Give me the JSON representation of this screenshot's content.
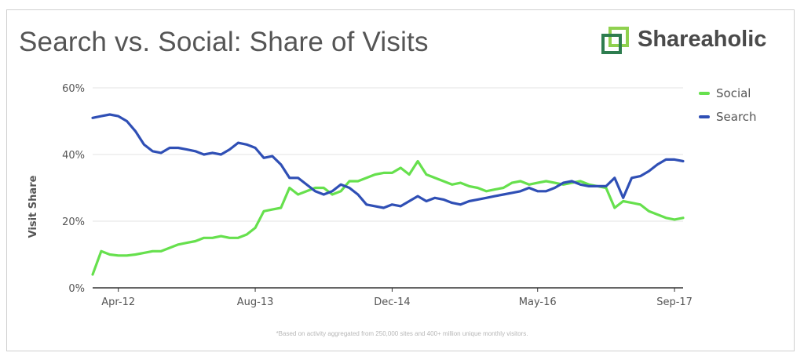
{
  "title": "Search vs. Social: Share of Visits",
  "brand": {
    "name": "Shareaholic",
    "icon": "shareaholic-logo-icon"
  },
  "footnote": "*Based on activity aggregated from 250,000 sites and 400+ million unique monthly visitors.",
  "colors": {
    "social": "#66e04d",
    "search": "#2f4fb5",
    "grid": "#e3e3e3",
    "axis": "#333333",
    "logo_dark": "#2e7d4f",
    "logo_light": "#8fd14f"
  },
  "chart_data": {
    "type": "line",
    "title": "Search vs. Social: Share of Visits",
    "xlabel": "",
    "ylabel": "Visit Share",
    "x_ticks": [
      "Apr-12",
      "Aug-13",
      "Dec-14",
      "May-16",
      "Sep-17"
    ],
    "y_ticks": [
      "0%",
      "20%",
      "40%",
      "60%"
    ],
    "ylim": [
      0,
      60
    ],
    "grid": true,
    "legend_position": "right",
    "x": [
      "Jan-12",
      "Feb-12",
      "Mar-12",
      "Apr-12",
      "May-12",
      "Jun-12",
      "Jul-12",
      "Aug-12",
      "Sep-12",
      "Oct-12",
      "Nov-12",
      "Dec-12",
      "Jan-13",
      "Feb-13",
      "Mar-13",
      "Apr-13",
      "May-13",
      "Jun-13",
      "Jul-13",
      "Aug-13",
      "Sep-13",
      "Oct-13",
      "Nov-13",
      "Dec-13",
      "Jan-14",
      "Feb-14",
      "Mar-14",
      "Apr-14",
      "May-14",
      "Jun-14",
      "Jul-14",
      "Aug-14",
      "Sep-14",
      "Oct-14",
      "Nov-14",
      "Dec-14",
      "Jan-15",
      "Feb-15",
      "Mar-15",
      "Apr-15",
      "May-15",
      "Jun-15",
      "Jul-15",
      "Aug-15",
      "Sep-15",
      "Oct-15",
      "Nov-15",
      "Dec-15",
      "Jan-16",
      "Feb-16",
      "Mar-16",
      "Apr-16",
      "May-16",
      "Jun-16",
      "Jul-16",
      "Aug-16",
      "Sep-16",
      "Oct-16",
      "Nov-16",
      "Dec-16",
      "Jan-17",
      "Feb-17",
      "Mar-17",
      "Apr-17",
      "May-17",
      "Jun-17",
      "Jul-17",
      "Aug-17",
      "Sep-17",
      "Oct-17"
    ],
    "series": [
      {
        "name": "Social",
        "values": [
          4,
          11,
          10,
          9.7,
          9.7,
          10,
          10.5,
          11,
          11,
          12,
          13,
          13.5,
          14,
          15,
          15,
          15.5,
          15,
          15,
          16,
          18,
          23,
          23.5,
          24,
          30,
          28,
          29,
          30,
          30,
          28,
          29,
          32,
          32,
          33,
          34,
          34.5,
          34.5,
          36,
          34,
          38,
          34,
          33,
          32,
          31,
          31.5,
          30.5,
          30,
          29,
          29.5,
          30,
          31.5,
          32,
          31,
          31.5,
          32,
          31.5,
          31,
          31.5,
          32,
          31,
          30.5,
          30,
          24,
          26,
          25.5,
          25,
          23,
          22,
          21,
          20.5,
          21
        ]
      },
      {
        "name": "Search",
        "values": [
          51,
          51.5,
          52,
          51.5,
          50,
          47,
          43,
          41,
          40.5,
          42,
          42,
          41.5,
          41,
          40,
          40.5,
          40,
          41.5,
          43.5,
          43,
          42,
          39,
          39.5,
          37,
          33,
          33,
          31,
          29,
          28,
          29,
          31,
          30,
          28,
          25,
          24.5,
          24,
          25,
          24.5,
          26,
          27.5,
          26,
          27,
          26.5,
          25.5,
          25,
          26,
          26.5,
          27,
          27.5,
          28,
          28.5,
          29,
          30,
          29,
          29,
          30,
          31.5,
          32,
          31,
          30.5,
          30.5,
          30.5,
          33,
          27,
          33,
          33.5,
          35,
          37,
          38.5,
          38.5,
          38
        ]
      }
    ]
  }
}
